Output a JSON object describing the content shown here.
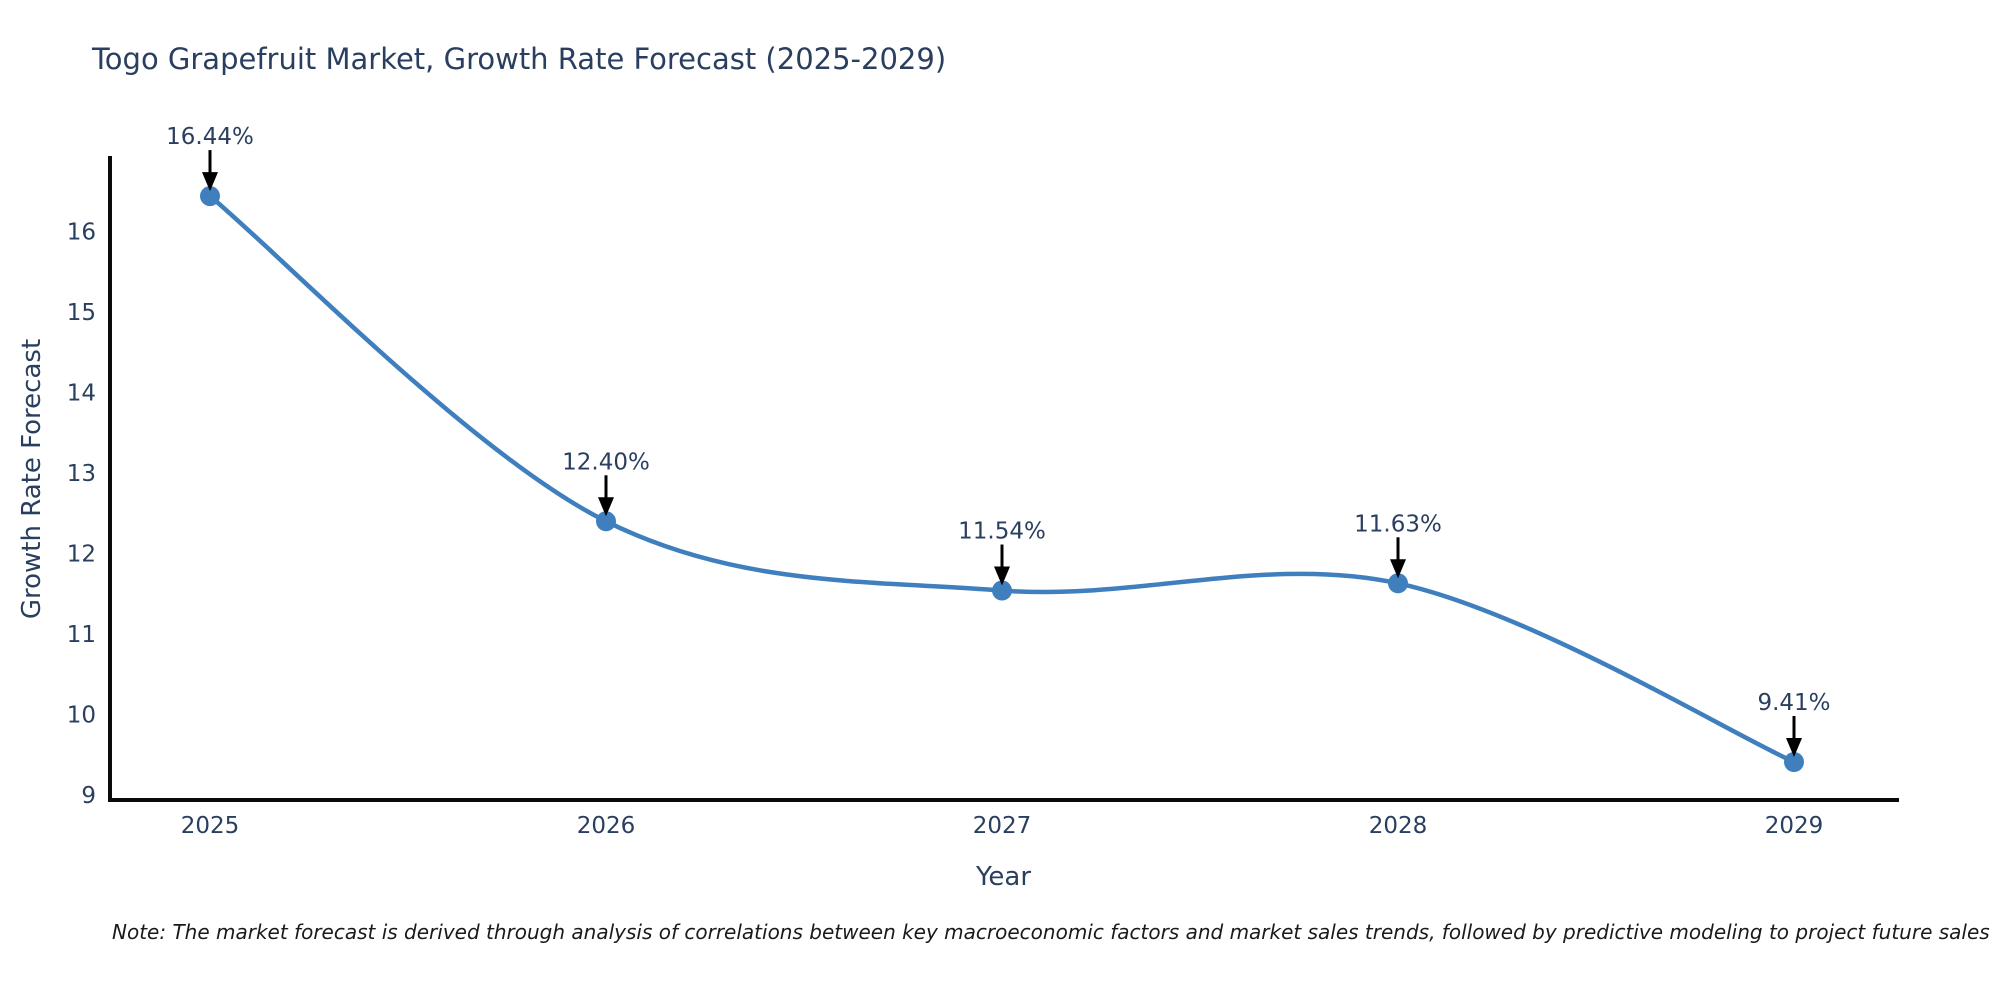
{
  "title": "Togo Grapefruit Market, Growth Rate Forecast (2025-2029)",
  "note": "Note: The market forecast is derived through analysis of correlations between key macroeconomic factors and market sales trends, followed by predictive modeling to project future sales",
  "chart_data": {
    "type": "line",
    "title": "Togo Grapefruit Market, Growth Rate Forecast (2025-2029)",
    "xlabel": "Year",
    "ylabel": "Growth Rate Forecast",
    "categories": [
      "2025",
      "2026",
      "2027",
      "2028",
      "2029"
    ],
    "series": [
      {
        "name": "Growth Rate Forecast",
        "values": [
          16.44,
          12.4,
          11.54,
          11.63,
          9.41
        ]
      }
    ],
    "point_labels": [
      "16.44%",
      "12.40%",
      "11.54%",
      "11.63%",
      "9.41%"
    ],
    "y_ticks": [
      9,
      10,
      11,
      12,
      13,
      14,
      15,
      16
    ],
    "ylim": [
      8.94,
      16.95
    ],
    "line_shape": "spline",
    "grid": false,
    "legend_position": "none",
    "annotations_have_arrows": true,
    "colors": {
      "line": "#3f7fbd",
      "marker": "#3f7fbd",
      "axis": "#0a0a0a",
      "text": "#2a3f5f",
      "arrow": "#000000"
    }
  }
}
